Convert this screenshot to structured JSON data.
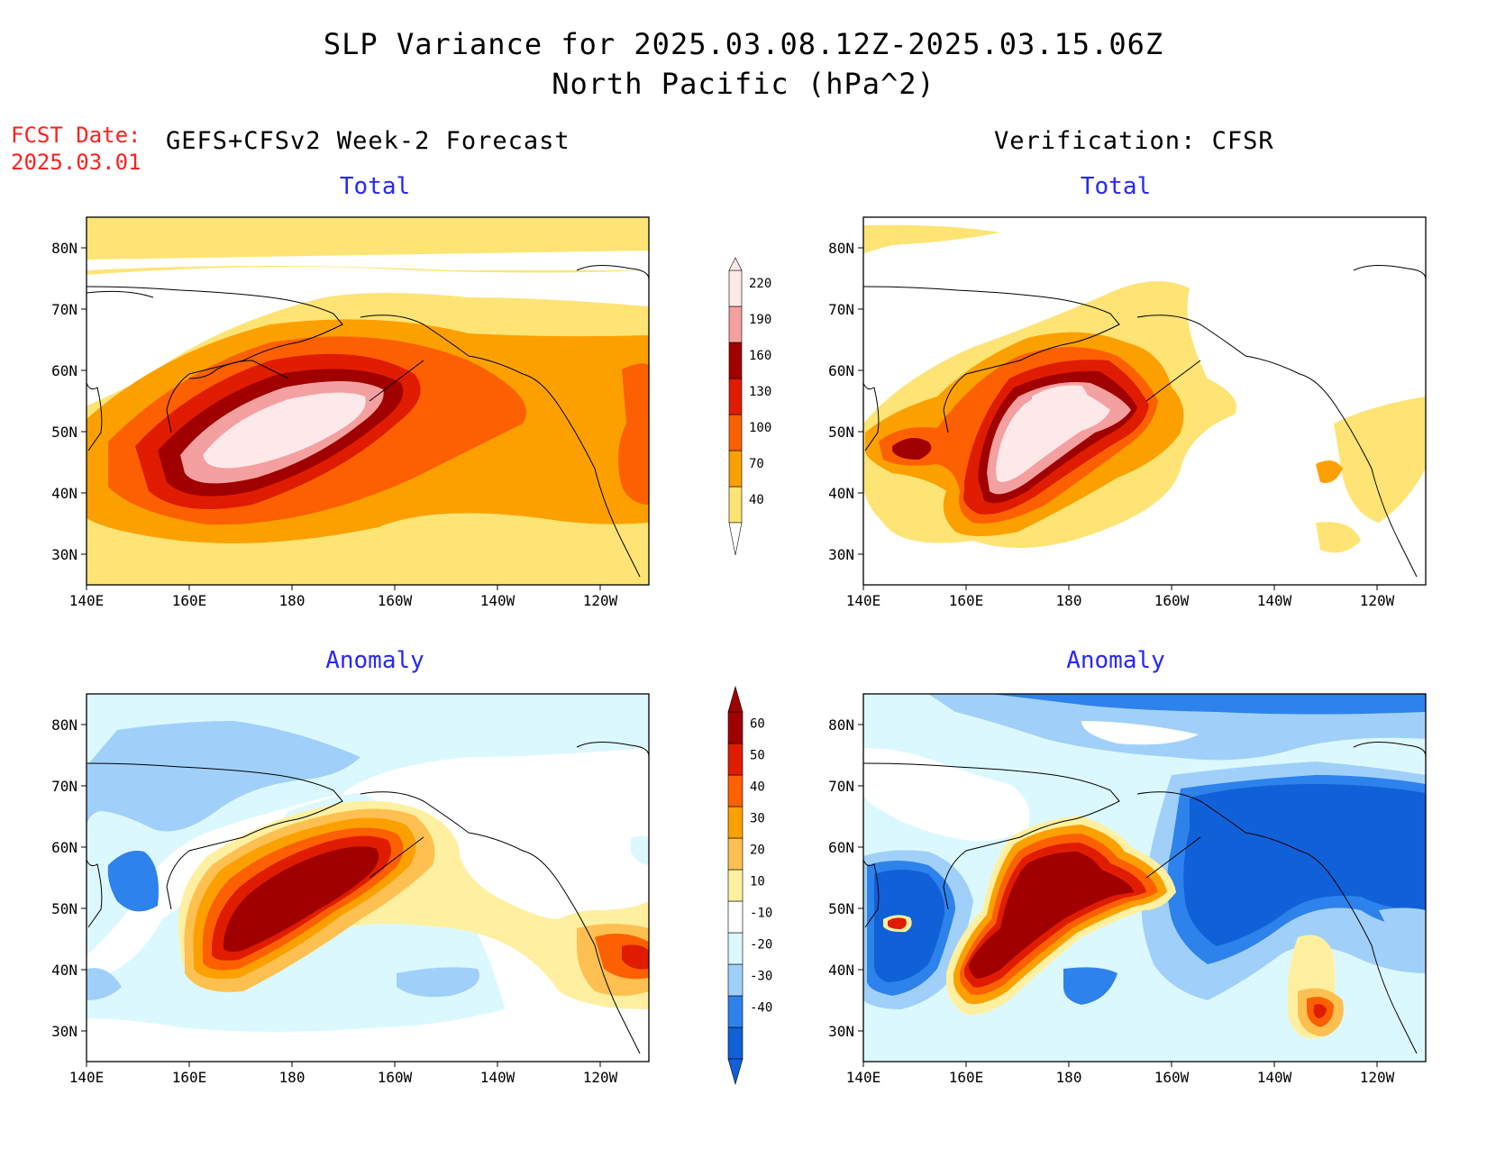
{
  "header": {
    "title_line1": "SLP Variance for 2025.03.08.12Z-2025.03.15.06Z",
    "title_line2": "North Pacific (hPa^2)",
    "fcst_label": "FCST Date:",
    "fcst_date": "2025.03.01",
    "left_column": "GEFS+CFSv2 Week-2 Forecast",
    "right_column": "Verification: CFSR"
  },
  "colors": {
    "total_scale": [
      "#fee475",
      "#fca000",
      "#fc6000",
      "#e01c00",
      "#a00000",
      "#f4a0a0",
      "#fde8ea"
    ],
    "anomaly_scale": [
      "#1060d8",
      "#2e82ec",
      "#a0d0fa",
      "#dcf8ff",
      "#ffffff",
      "#fef0a0",
      "#fec050",
      "#fca000",
      "#fc6000",
      "#e01c00",
      "#a00000"
    ],
    "panel_title": "#2626ff",
    "fcst_date": "#ff2020"
  },
  "chart_data": [
    {
      "type": "heatmap",
      "title": "Total",
      "column": "GEFS+CFSv2 Week-2 Forecast",
      "x_ticks": [
        "140E",
        "160E",
        "180",
        "160W",
        "140W",
        "120W"
      ],
      "y_ticks": [
        "30N",
        "40N",
        "50N",
        "60N",
        "70N",
        "80N"
      ],
      "xlim": [
        140,
        249
      ],
      "ylim": [
        25,
        85
      ],
      "levels": [
        40,
        70,
        100,
        130,
        160,
        190,
        220
      ],
      "maximum_region": {
        "center_lon": 185,
        "center_lat": 51,
        "max_level": 220
      }
    },
    {
      "type": "heatmap",
      "title": "Total",
      "column": "Verification: CFSR",
      "x_ticks": [
        "140E",
        "160E",
        "180",
        "160W",
        "140W",
        "120W"
      ],
      "y_ticks": [
        "30N",
        "40N",
        "50N",
        "60N",
        "70N",
        "80N"
      ],
      "xlim": [
        140,
        249
      ],
      "ylim": [
        25,
        85
      ],
      "levels": [
        40,
        70,
        100,
        130,
        160,
        190,
        220
      ],
      "maximum_region": {
        "center_lon": 182,
        "center_lat": 48,
        "max_level": 220
      }
    },
    {
      "type": "heatmap",
      "title": "Anomaly",
      "column": "GEFS+CFSv2 Week-2 Forecast",
      "x_ticks": [
        "140E",
        "160E",
        "180",
        "160W",
        "140W",
        "120W"
      ],
      "y_ticks": [
        "30N",
        "40N",
        "50N",
        "60N",
        "70N",
        "80N"
      ],
      "xlim": [
        140,
        249
      ],
      "ylim": [
        25,
        85
      ],
      "levels": [
        -40,
        -30,
        -20,
        -10,
        10,
        20,
        30,
        40,
        50,
        60
      ],
      "maximum_region": {
        "center_lon": 182,
        "center_lat": 50,
        "max_level": 60
      }
    },
    {
      "type": "heatmap",
      "title": "Anomaly",
      "column": "Verification: CFSR",
      "x_ticks": [
        "140E",
        "160E",
        "180",
        "160W",
        "140W",
        "120W"
      ],
      "y_ticks": [
        "30N",
        "40N",
        "50N",
        "60N",
        "70N",
        "80N"
      ],
      "xlim": [
        140,
        249
      ],
      "ylim": [
        25,
        85
      ],
      "levels": [
        -40,
        -30,
        -20,
        -10,
        10,
        20,
        30,
        40,
        50,
        60
      ],
      "maximum_region": {
        "center_lon": 178,
        "center_lat": 47,
        "max_level": 60
      },
      "minimum_region": {
        "center_lon": 220,
        "center_lat": 58,
        "min_level": -40
      }
    }
  ],
  "colorbars": {
    "total": {
      "labels": [
        "220",
        "190",
        "160",
        "130",
        "100",
        "70",
        "40"
      ]
    },
    "anomaly": {
      "labels": [
        "60",
        "50",
        "40",
        "30",
        "20",
        "10",
        "-10",
        "-20",
        "-30",
        "-40"
      ]
    }
  }
}
